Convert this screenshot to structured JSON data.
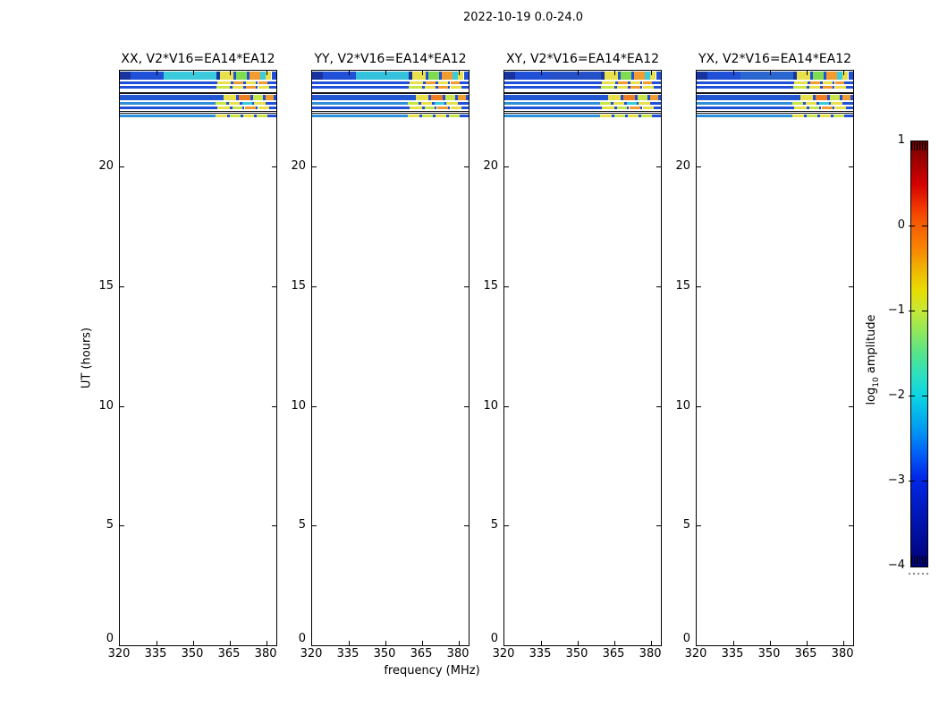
{
  "chart_data": {
    "type": "heatmap",
    "title": "2022-10-19 0.0-24.0",
    "xlabel": "frequency (MHz)",
    "ylabel": "UT (hours)",
    "x_range": [
      320,
      384
    ],
    "x_ticks": [
      320,
      335,
      350,
      365,
      380
    ],
    "y_range": [
      0,
      24
    ],
    "y_ticks": [
      0,
      5,
      10,
      15,
      20
    ],
    "grid": false,
    "panels": [
      {
        "label": "XX, V2*V16=EA14*EA12",
        "band_a_mid": "#3CCADD"
      },
      {
        "label": "YY, V2*V16=EA14*EA12",
        "band_a_mid": "#34C2DC"
      },
      {
        "label": "XY, V2*V16=EA14*EA12",
        "band_a_mid": "#2450C8"
      },
      {
        "label": "YX, V2*V16=EA14*EA12",
        "band_a_mid": "#2A66D0"
      }
    ],
    "colorbar": {
      "label_pre": "log",
      "label_sub": "10",
      "label_post": " amplitude",
      "ticks": [
        1,
        0,
        -1,
        -2,
        -3,
        -4
      ],
      "range": [
        -4,
        1
      ],
      "position": "right"
    },
    "palette": {
      "navy": "#16339E",
      "blue": "#2050D8",
      "mblue": "#2257CF",
      "cblue": "#2E8FD8",
      "cyan": "#3CCADD",
      "green": "#7FDC4F",
      "ygreen": "#C8E64A",
      "yellow": "#E8E14B",
      "orange": "#F29B2E",
      "dorange": "#EE7E22",
      "black": "#151515"
    },
    "bands": [
      {
        "ut": [
          23.62,
          23.95
        ],
        "segments": [
          [
            320,
            324.5,
            "navy",
            1
          ],
          [
            324.5,
            338,
            "blue",
            1
          ],
          [
            338,
            359.5,
            "AMID",
            1
          ],
          [
            359.5,
            361,
            "navy",
            0
          ],
          [
            361,
            366.5,
            "yellow",
            0
          ],
          [
            366.5,
            367.5,
            "blue",
            0
          ],
          [
            367.5,
            372,
            "green",
            0
          ],
          [
            372,
            373,
            "blue",
            0
          ],
          [
            373,
            377.5,
            "orange",
            0
          ],
          [
            377.5,
            379.5,
            "cyan",
            0
          ],
          [
            379.5,
            382,
            "yellow",
            0
          ],
          [
            382,
            384,
            "blue",
            1
          ]
        ]
      },
      {
        "ut": [
          23.42,
          23.54
        ],
        "segments": [
          [
            320,
            360,
            "blue",
            1
          ],
          [
            360,
            365.5,
            "yellow",
            0
          ],
          [
            365.5,
            366.5,
            "blue",
            0
          ],
          [
            366.5,
            370.5,
            "orange",
            0
          ],
          [
            370.5,
            371.5,
            "blue",
            0
          ],
          [
            371.5,
            375.5,
            "yellow",
            0
          ],
          [
            375.5,
            376.5,
            "blue",
            0
          ],
          [
            376.5,
            380.5,
            "orange",
            0
          ],
          [
            380.5,
            384,
            "blue",
            1
          ]
        ]
      },
      {
        "ut": [
          23.24,
          23.36
        ],
        "segments": [
          [
            320,
            359.5,
            "blue",
            1
          ],
          [
            359.5,
            365,
            "ygreen",
            0
          ],
          [
            365,
            366,
            "blue",
            0
          ],
          [
            366,
            370.5,
            "yellow",
            0
          ],
          [
            370.5,
            371.5,
            "blue",
            0
          ],
          [
            371.5,
            375.5,
            "orange",
            0
          ],
          [
            375.5,
            376.5,
            "blue",
            0
          ],
          [
            376.5,
            381,
            "yellow",
            0
          ],
          [
            381,
            384,
            "blue",
            1
          ]
        ]
      },
      {
        "ut": [
          23.04,
          23.09
        ],
        "segments": [
          [
            320,
            384,
            "black",
            0
          ]
        ]
      },
      {
        "ut": [
          22.76,
          23.0
        ],
        "segments": [
          [
            320,
            362.5,
            "mblue",
            1
          ],
          [
            362.5,
            367.5,
            "yellow",
            0
          ],
          [
            367.5,
            368.5,
            "blue",
            0
          ],
          [
            368.5,
            373.5,
            "dorange",
            0
          ],
          [
            373.5,
            374.5,
            "blue",
            0
          ],
          [
            374.5,
            378.5,
            "ygreen",
            0
          ],
          [
            378.5,
            379.5,
            "blue",
            0
          ],
          [
            379.5,
            383,
            "orange",
            0
          ],
          [
            383,
            384,
            "blue",
            1
          ]
        ]
      },
      {
        "ut": [
          22.57,
          22.68
        ],
        "segments": [
          [
            320,
            359,
            "cblue",
            1
          ],
          [
            359,
            363.5,
            "ygreen",
            0
          ],
          [
            363.5,
            364.5,
            "blue",
            0
          ],
          [
            364.5,
            369,
            "yellow",
            0
          ],
          [
            369,
            370,
            "blue",
            0
          ],
          [
            370,
            374,
            "cyan",
            0
          ],
          [
            374,
            375,
            "blue",
            0
          ],
          [
            375,
            379.5,
            "yellow",
            0
          ],
          [
            379.5,
            384,
            "blue",
            1
          ]
        ]
      },
      {
        "ut": [
          22.38,
          22.49
        ],
        "segments": [
          [
            320,
            360,
            "blue",
            1
          ],
          [
            360,
            365,
            "yellow",
            0
          ],
          [
            365,
            366,
            "blue",
            0
          ],
          [
            366,
            370,
            "ygreen",
            0
          ],
          [
            370,
            371,
            "blue",
            0
          ],
          [
            371,
            375.5,
            "orange",
            0
          ],
          [
            375.5,
            376.5,
            "blue",
            0
          ],
          [
            376.5,
            381,
            "yellow",
            0
          ],
          [
            381,
            384,
            "blue",
            1
          ]
        ]
      },
      {
        "ut": [
          22.28,
          22.32
        ],
        "segments": [
          [
            320,
            384,
            "black",
            0
          ]
        ]
      },
      {
        "ut": [
          22.21,
          22.25
        ],
        "segments": [
          [
            320,
            384,
            "black",
            0
          ]
        ]
      },
      {
        "ut": [
          22.07,
          22.18
        ],
        "segments": [
          [
            320,
            359,
            "cblue",
            1
          ],
          [
            359,
            364,
            "yellow",
            0
          ],
          [
            364,
            365,
            "blue",
            0
          ],
          [
            365,
            369.5,
            "ygreen",
            0
          ],
          [
            369.5,
            370.5,
            "blue",
            0
          ],
          [
            370.5,
            375,
            "yellow",
            0
          ],
          [
            375,
            376,
            "blue",
            0
          ],
          [
            376,
            380.5,
            "ygreen",
            0
          ],
          [
            380.5,
            384,
            "blue",
            1
          ]
        ]
      }
    ]
  }
}
